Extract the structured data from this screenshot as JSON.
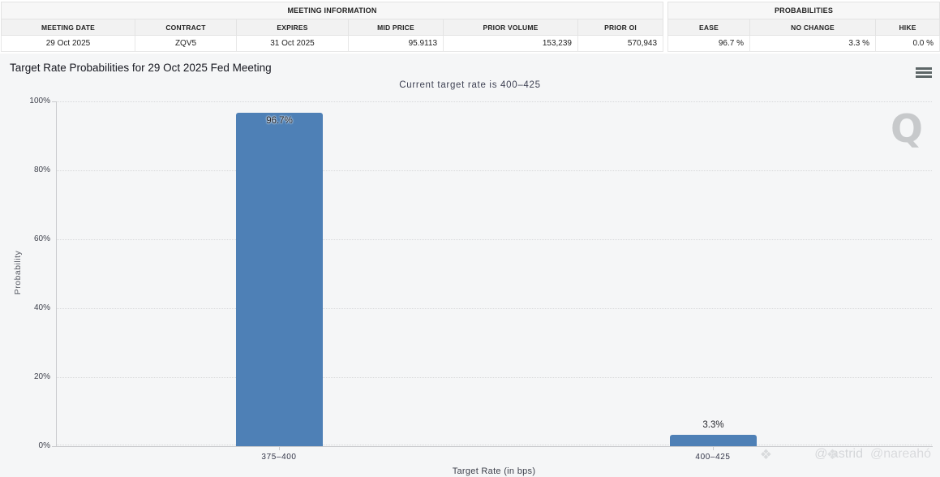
{
  "meeting_information": {
    "title": "MEETING INFORMATION",
    "columns": [
      "MEETING DATE",
      "CONTRACT",
      "EXPIRES",
      "MID PRICE",
      "PRIOR VOLUME",
      "PRIOR OI"
    ],
    "row": {
      "meeting_date": "29 Oct 2025",
      "contract": "ZQV5",
      "expires": "31 Oct 2025",
      "mid_price": "95.9113",
      "prior_volume": "153,239",
      "prior_oi": "570,943"
    }
  },
  "probabilities": {
    "title": "PROBABILITIES",
    "columns": [
      "EASE",
      "NO CHANGE",
      "HIKE"
    ],
    "row": {
      "ease": "96.7 %",
      "no_change": "3.3 %",
      "hike": "0.0 %"
    }
  },
  "chart": {
    "title": "Target Rate Probabilities for 29 Oct 2025 Fed Meeting",
    "subtitle": "Current target rate is 400–425",
    "menu_icon": "hamburger-icon",
    "watermark_letter": "Q",
    "watermark_handle_1": "@ astrid",
    "watermark_handle_2": "@nareahó",
    "watermark_logo": "❖"
  },
  "chart_data": {
    "type": "bar",
    "title": "Target Rate Probabilities for 29 Oct 2025 Fed Meeting",
    "subtitle": "Current target rate is 400–425",
    "categories": [
      "375–400",
      "400–425"
    ],
    "values": [
      96.7,
      3.3
    ],
    "labels": [
      "96.7%",
      "3.3%"
    ],
    "xlabel": "Target Rate (in bps)",
    "ylabel": "Probability",
    "ylim": [
      0,
      100
    ],
    "yticks": [
      "0%",
      "20%",
      "40%",
      "60%",
      "80%",
      "100%"
    ],
    "grid": "horizontal-dotted",
    "legend": "none",
    "bar_color": "#4e80b6"
  }
}
